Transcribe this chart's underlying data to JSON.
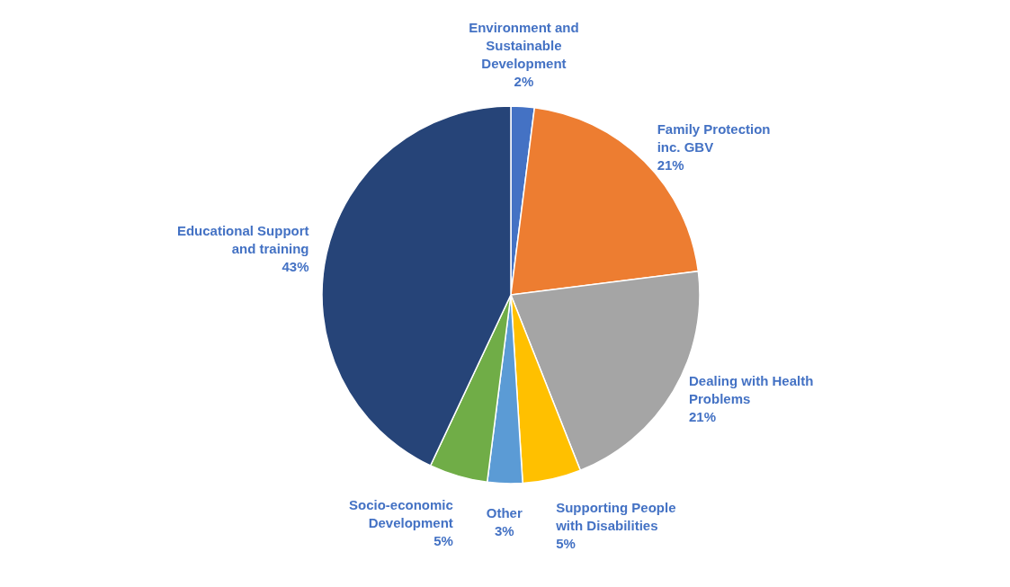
{
  "chart_data": {
    "type": "pie",
    "categories": [
      "Environment and Sustainable Development",
      "Family Protection inc. GBV",
      "Dealing with Health Problems",
      "Supporting People with Disabilities",
      "Other",
      "Socio-economic Development",
      "Educational Support and training"
    ],
    "values": [
      2,
      21,
      21,
      5,
      3,
      5,
      43
    ],
    "value_labels": [
      "2%",
      "21%",
      "21%",
      "5%",
      "3%",
      "5%",
      "43%"
    ],
    "colors": [
      "#4472c4",
      "#ed7d31",
      "#a5a5a5",
      "#ffc000",
      "#5b9bd5",
      "#70ad47",
      "#264478"
    ]
  }
}
